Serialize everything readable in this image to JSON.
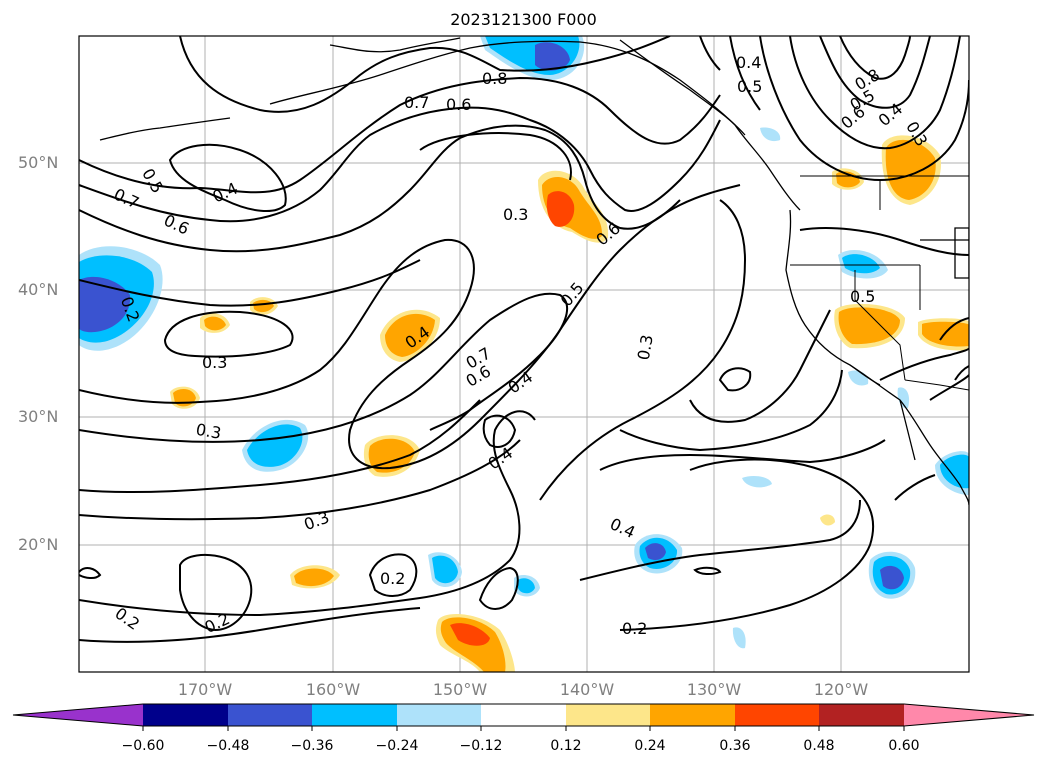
{
  "title": "2023121300 F000",
  "lat_labels": [
    "50°N",
    "40°N",
    "30°N",
    "20°N"
  ],
  "lon_labels": [
    "170°W",
    "160°W",
    "150°W",
    "140°W",
    "130°W",
    "120°W"
  ],
  "contour_labels": [
    "0.4",
    "0.5",
    "0.8",
    "0.7",
    "0.6",
    "0.8",
    "0.5",
    "0.6",
    "0.4",
    "0.3",
    "0.5",
    "0.7",
    "0.6",
    "0.4",
    "0.3",
    "0.6",
    "0.2",
    "0.3",
    "0.5",
    "0.4",
    "0.7",
    "0.6",
    "0.4",
    "0.3",
    "0.5",
    "0.3",
    "0.4",
    "0.3",
    "0.4",
    "0.2",
    "0.2",
    "0.2",
    "0.2"
  ],
  "colorbar": {
    "ticks": [
      "−0.60",
      "−0.48",
      "−0.36",
      "−0.24",
      "−0.12",
      "0.12",
      "0.24",
      "0.36",
      "0.48",
      "0.60"
    ],
    "colors": [
      "#9932cc",
      "#00008b",
      "#3a53d0",
      "#00bfff",
      "#aee2fa",
      "#ffffff",
      "#fde68a",
      "#ffa500",
      "#ff4500",
      "#b22222",
      "#ff88aa"
    ]
  }
}
